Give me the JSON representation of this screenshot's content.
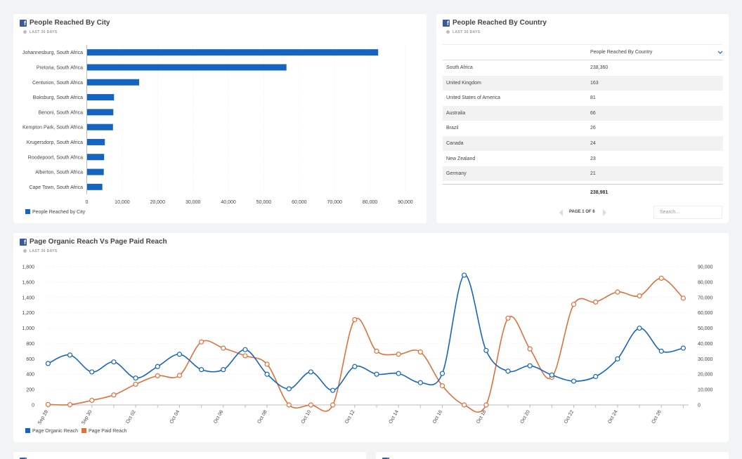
{
  "colors": {
    "blue": "#1565c0",
    "orange": "#e0703c",
    "fb": "#3b5998"
  },
  "city_card": {
    "title": "People Reached By City",
    "subtitle": "LAST 30 DAYS",
    "legend": "People Reached by City"
  },
  "country_card": {
    "title": "People Reached By Country",
    "subtitle": "LAST 30 DAYS",
    "column_header": "People Reached By Country",
    "rows": [
      {
        "country": "South Africa",
        "value": "238,360"
      },
      {
        "country": "United Kingdom",
        "value": "163"
      },
      {
        "country": "United States of America",
        "value": "81"
      },
      {
        "country": "Australia",
        "value": "66"
      },
      {
        "country": "Brazil",
        "value": "26"
      },
      {
        "country": "Canada",
        "value": "24"
      },
      {
        "country": "New Zealand",
        "value": "23"
      },
      {
        "country": "Germany",
        "value": "21"
      }
    ],
    "total": "238,981",
    "pagination": "PAGE 1 OF 6",
    "search_placeholder": "Search..."
  },
  "reach_card": {
    "title": "Page Organic Reach Vs Page Paid Reach",
    "subtitle": "LAST 30 DAYS"
  },
  "chart_data": [
    {
      "type": "bar",
      "orientation": "horizontal",
      "categories": [
        "Johannesburg, South Africa",
        "Pretoria, South Africa",
        "Centurion, South Africa",
        "Boksburg, South Africa",
        "Benoni, South Africa",
        "Kempton Park, South Africa",
        "Krugersdorp, South Africa",
        "Roodepoort, South Africa",
        "Alberton, South Africa",
        "Cape Town, South Africa"
      ],
      "series": [
        {
          "name": "People Reached by City",
          "values": [
            82200,
            56300,
            14700,
            7600,
            7400,
            7300,
            5000,
            4800,
            4700,
            4300
          ]
        }
      ],
      "xlim": [
        0,
        90000
      ],
      "xticks": [
        0,
        10000,
        20000,
        30000,
        40000,
        50000,
        60000,
        70000,
        80000,
        90000
      ],
      "xtick_labels": [
        "0",
        "10,000",
        "20,000",
        "30,000",
        "40,000",
        "50,000",
        "60,000",
        "70,000",
        "80,000",
        "90,000"
      ],
      "grid": true,
      "legend": "bottom-left"
    },
    {
      "type": "line",
      "x": [
        "Sep 28",
        "Sep 29",
        "Sep 30",
        "Oct 01",
        "Oct 02",
        "Oct 03",
        "Oct 04",
        "Oct 05",
        "Oct 06",
        "Oct 07",
        "Oct 08",
        "Oct 09",
        "Oct 10",
        "Oct 11",
        "Oct 12",
        "Oct 13",
        "Oct 14",
        "Oct 15",
        "Oct 16",
        "Oct 17",
        "Oct 18",
        "Oct 19",
        "Oct 20",
        "Oct 21",
        "Oct 22",
        "Oct 23",
        "Oct 24",
        "Oct 25",
        "Oct 26",
        "Oct 27"
      ],
      "x_tick_labels": [
        "Sep 28",
        "Sep 30",
        "Oct 02",
        "Oct 04",
        "Oct 06",
        "Oct 08",
        "Oct 10",
        "Oct 12",
        "Oct 14",
        "Oct 16",
        "Oct 18",
        "Oct 20",
        "Oct 22",
        "Oct 24",
        "Oct 26"
      ],
      "series": [
        {
          "name": "Page Organic Reach",
          "axis": "left",
          "values": [
            540,
            650,
            430,
            560,
            350,
            500,
            660,
            460,
            460,
            720,
            400,
            210,
            430,
            190,
            500,
            400,
            410,
            290,
            410,
            1690,
            710,
            440,
            510,
            390,
            310,
            370,
            600,
            1000,
            700,
            740
          ]
        },
        {
          "name": "Page Paid Reach",
          "axis": "right",
          "values": [
            300,
            200,
            3000,
            6500,
            13500,
            19000,
            19200,
            41000,
            37000,
            32000,
            26500,
            0,
            0,
            0,
            55500,
            35000,
            33000,
            34500,
            12500,
            0,
            0,
            56500,
            36500,
            18000,
            65500,
            67000,
            73500,
            71000,
            82500,
            69500
          ]
        }
      ],
      "ylim_left": [
        0,
        1800
      ],
      "yticks_left": [
        "0",
        "200",
        "400",
        "600",
        "800",
        "1,000",
        "1,200",
        "1,400",
        "1,600",
        "1,800"
      ],
      "ylim_right": [
        0,
        90000
      ],
      "yticks_right": [
        "0",
        "10,000",
        "20,000",
        "30,000",
        "40,000",
        "50,000",
        "60,000",
        "70,000",
        "80,000",
        "90,000"
      ],
      "grid": true,
      "legend": "bottom-left"
    }
  ]
}
